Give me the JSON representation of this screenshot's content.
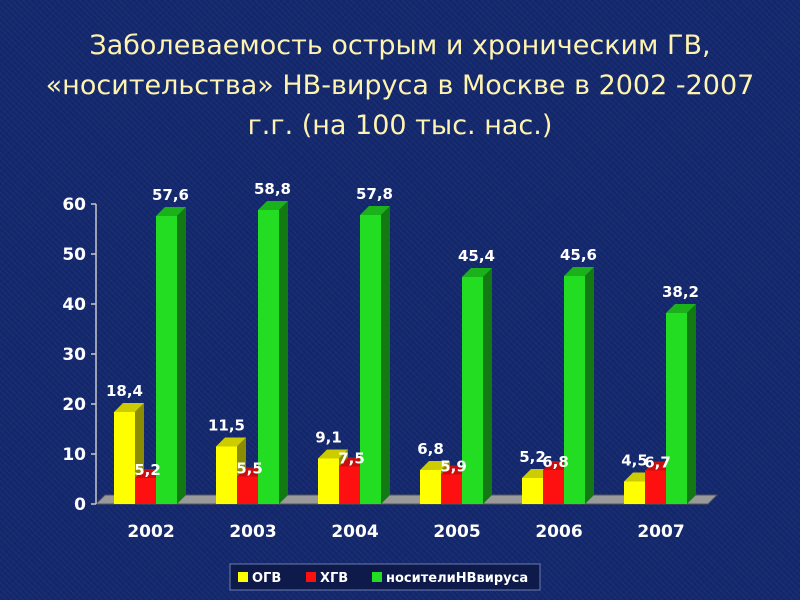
{
  "title": "Заболеваемость острым и хроническим ГВ, «носительства» НВ-вируса в Москве в 2002 -2007 г.г. (на 100 тыс. нас.)",
  "chart_data": {
    "type": "bar",
    "categories": [
      "2002",
      "2003",
      "2004",
      "2005",
      "2006",
      "2007"
    ],
    "series": [
      {
        "name": "ОГВ",
        "color": "#ffff00",
        "values": [
          18.4,
          11.5,
          9.1,
          6.8,
          5.2,
          4.5
        ],
        "labels": [
          "18,4",
          "11,5",
          "9,1",
          "6,8",
          "5,2",
          "4,5"
        ]
      },
      {
        "name": "ХГВ",
        "color": "#ff1010",
        "values": [
          5.2,
          5.5,
          7.5,
          5.9,
          6.8,
          6.7
        ],
        "labels": [
          "5,2",
          "5,5",
          "7,5",
          "5,9",
          "6,8",
          "6,7"
        ]
      },
      {
        "name": "носителиНВвируса",
        "color": "#22dd22",
        "values": [
          57.6,
          58.8,
          57.8,
          45.4,
          45.6,
          38.2
        ],
        "labels": [
          "57,6",
          "58,8",
          "57,8",
          "45,4",
          "45,6",
          "38,2"
        ]
      }
    ],
    "yticks": [
      "0",
      "10",
      "20",
      "30",
      "40",
      "50",
      "60"
    ],
    "ylim": [
      0,
      60
    ],
    "legend_position": "bottom",
    "grid": false
  }
}
